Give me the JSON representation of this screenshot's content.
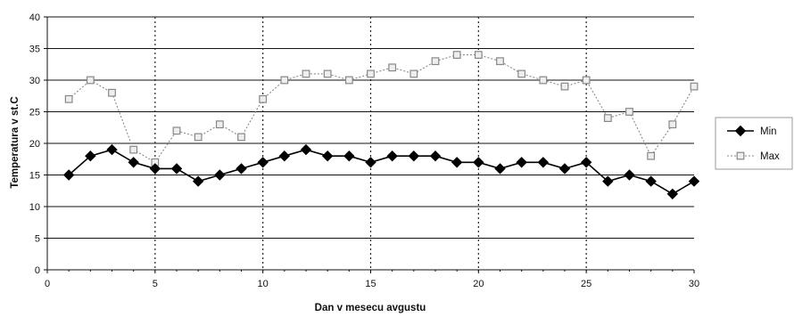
{
  "chart_data": {
    "type": "line",
    "title": "",
    "xlabel": "Dan v mesecu avgustu",
    "ylabel": "Temperatura v st.C",
    "xlim": [
      0,
      30
    ],
    "ylim": [
      0,
      40
    ],
    "x_ticks": [
      0,
      5,
      10,
      15,
      20,
      25,
      30
    ],
    "y_ticks": [
      0,
      5,
      10,
      15,
      20,
      25,
      30,
      35,
      40
    ],
    "x_tick_labels": [
      "0",
      "5",
      "10",
      "15",
      "20",
      "25",
      "30"
    ],
    "y_tick_labels": [
      "0",
      "5",
      "10",
      "15",
      "20",
      "25",
      "30",
      "35",
      "40"
    ],
    "grid": "horizontal solid lines, vertical dotted lines at x ticks",
    "legend_position": "right",
    "x": [
      1,
      2,
      3,
      4,
      5,
      6,
      7,
      8,
      9,
      10,
      11,
      12,
      13,
      14,
      15,
      16,
      17,
      18,
      19,
      20,
      21,
      22,
      23,
      24,
      25,
      26,
      27,
      28,
      29,
      30
    ],
    "series": [
      {
        "name": "Min",
        "color": "#000000",
        "marker": "diamond",
        "values": [
          15,
          18,
          19,
          17,
          16,
          16,
          14,
          15,
          16,
          17,
          18,
          19,
          18,
          18,
          17,
          18,
          18,
          18,
          17,
          17,
          16,
          17,
          17,
          16,
          17,
          14,
          15,
          14,
          12,
          14
        ]
      },
      {
        "name": "Max",
        "color": "#888888",
        "marker": "square",
        "values": [
          27,
          30,
          28,
          19,
          17,
          22,
          21,
          23,
          21,
          27,
          30,
          31,
          31,
          30,
          31,
          32,
          31,
          33,
          34,
          34,
          33,
          31,
          30,
          29,
          30,
          24,
          25,
          18,
          23,
          29
        ]
      }
    ]
  }
}
